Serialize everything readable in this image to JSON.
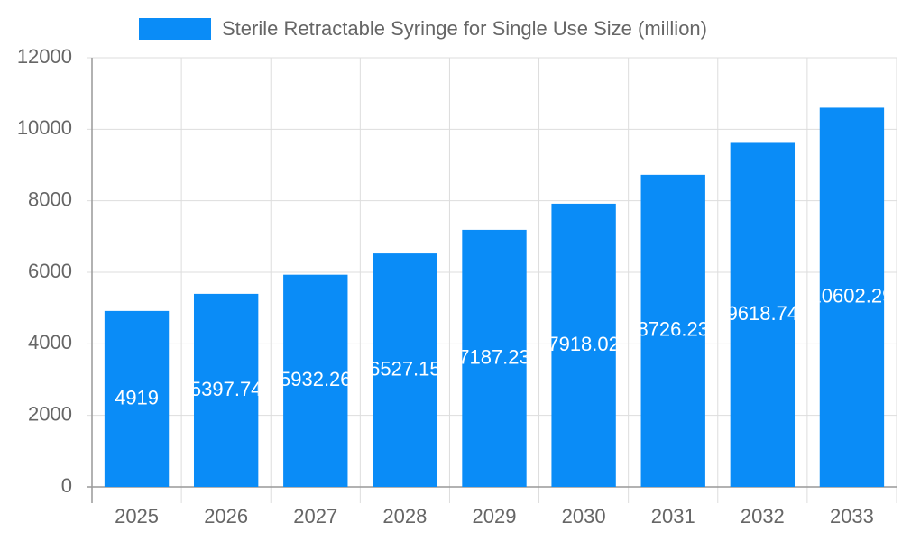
{
  "chart_data": {
    "type": "bar",
    "legend": "Sterile Retractable Syringe for Single Use Size (million)",
    "categories": [
      "2025",
      "2026",
      "2027",
      "2028",
      "2029",
      "2030",
      "2031",
      "2032",
      "2033"
    ],
    "values": [
      4919,
      5397.74,
      5932.26,
      6527.15,
      7187.23,
      7918.02,
      8726.23,
      9618.74,
      10602.29
    ],
    "color": "#0a8cf7",
    "ylim": [
      0,
      12000
    ],
    "yticks": [
      0,
      2000,
      4000,
      6000,
      8000,
      10000,
      12000
    ],
    "grid": true
  }
}
